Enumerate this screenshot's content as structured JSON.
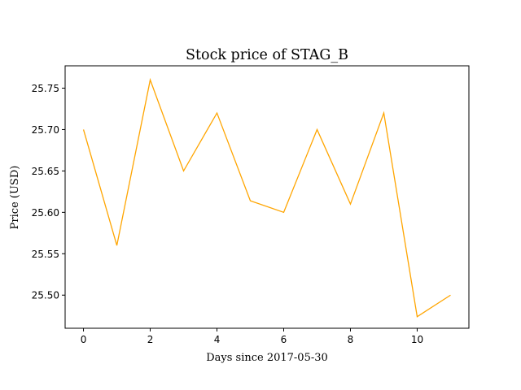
{
  "chart_data": {
    "type": "line",
    "title": "Stock price of STAG_B",
    "xlabel": "Days since 2017-05-30",
    "ylabel": "Price (USD)",
    "x": [
      0,
      1,
      2,
      3,
      4,
      5,
      6,
      7,
      8,
      9,
      10,
      11
    ],
    "series": [
      {
        "values": [
          25.7,
          25.56,
          25.76,
          25.65,
          25.72,
          25.614,
          25.6,
          25.7,
          25.61,
          25.72,
          25.474,
          25.5
        ],
        "color": "#ffa500"
      }
    ],
    "xlim": [
      -0.55,
      11.55
    ],
    "ylim": [
      25.46,
      25.777
    ],
    "x_ticks": [
      0,
      2,
      4,
      6,
      8,
      10
    ],
    "x_tick_labels": [
      "0",
      "2",
      "4",
      "6",
      "8",
      "10"
    ],
    "y_ticks": [
      25.5,
      25.55,
      25.6,
      25.65,
      25.7,
      25.75
    ],
    "y_tick_labels": [
      "25.50",
      "25.55",
      "25.60",
      "25.65",
      "25.70",
      "25.75"
    ],
    "grid": false,
    "legend": "none"
  }
}
